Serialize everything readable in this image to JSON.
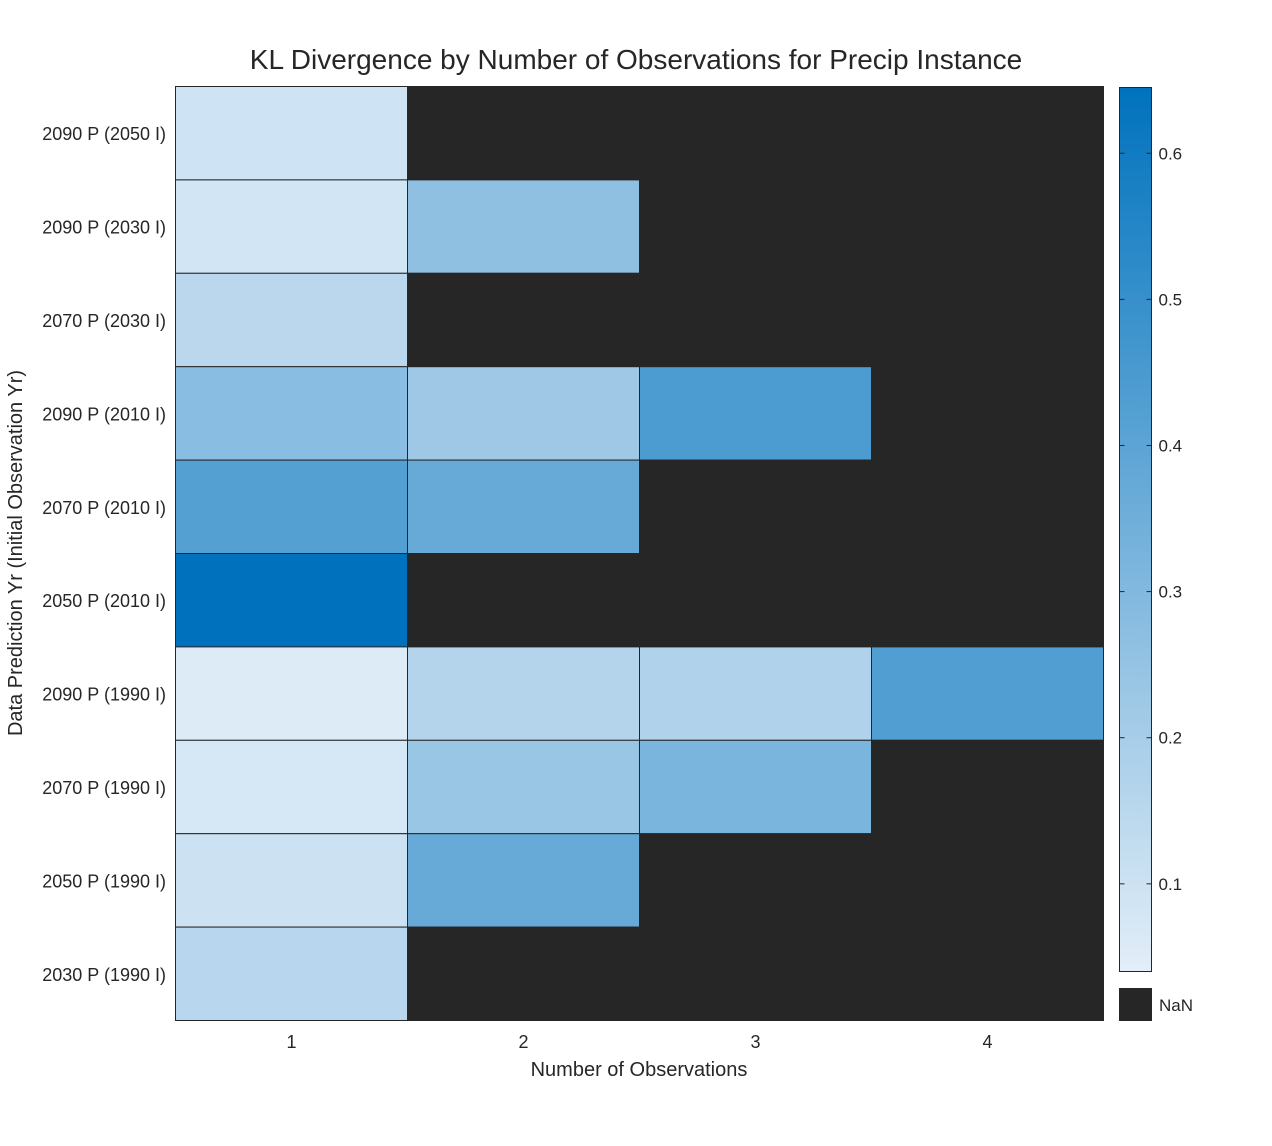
{
  "chart_data": {
    "type": "heatmap",
    "title": "KL Divergence by Number of Observations for Precip Instance",
    "xlabel": "Number of Observations",
    "ylabel": "Data Prediction Yr (Initial Observation Yr)",
    "x_categories": [
      "1",
      "2",
      "3",
      "4"
    ],
    "y_categories": [
      "2090 P (2050 I)",
      "2090 P (2030 I)",
      "2070 P (2030 I)",
      "2090 P (2010 I)",
      "2070 P (2010 I)",
      "2050 P (2010 I)",
      "2090 P (1990 I)",
      "2070 P (1990 I)",
      "2050 P (1990 I)",
      "2030 P (1990 I)"
    ],
    "values": [
      [
        0.095,
        null,
        null,
        null
      ],
      [
        0.085,
        0.265,
        null,
        null
      ],
      [
        0.15,
        null,
        null,
        null
      ],
      [
        0.28,
        0.225,
        0.44,
        null
      ],
      [
        0.42,
        0.37,
        null,
        null
      ],
      [
        0.645,
        null,
        null,
        null
      ],
      [
        0.055,
        0.165,
        0.175,
        0.43
      ],
      [
        0.075,
        0.235,
        0.32,
        null
      ],
      [
        0.1,
        0.37,
        null,
        null
      ],
      [
        0.155,
        null,
        null,
        null
      ]
    ],
    "colorbar": {
      "range": [
        0.04,
        0.645
      ],
      "ticks": [
        0.1,
        0.2,
        0.3,
        0.4,
        0.5,
        0.6
      ],
      "tick_labels": [
        "0.1",
        "0.2",
        "0.3",
        "0.4",
        "0.5",
        "0.6"
      ],
      "low_color": "#e3eef8",
      "high_color": "#0072bd"
    },
    "missing": {
      "label": "NaN",
      "color": "#262626"
    }
  }
}
